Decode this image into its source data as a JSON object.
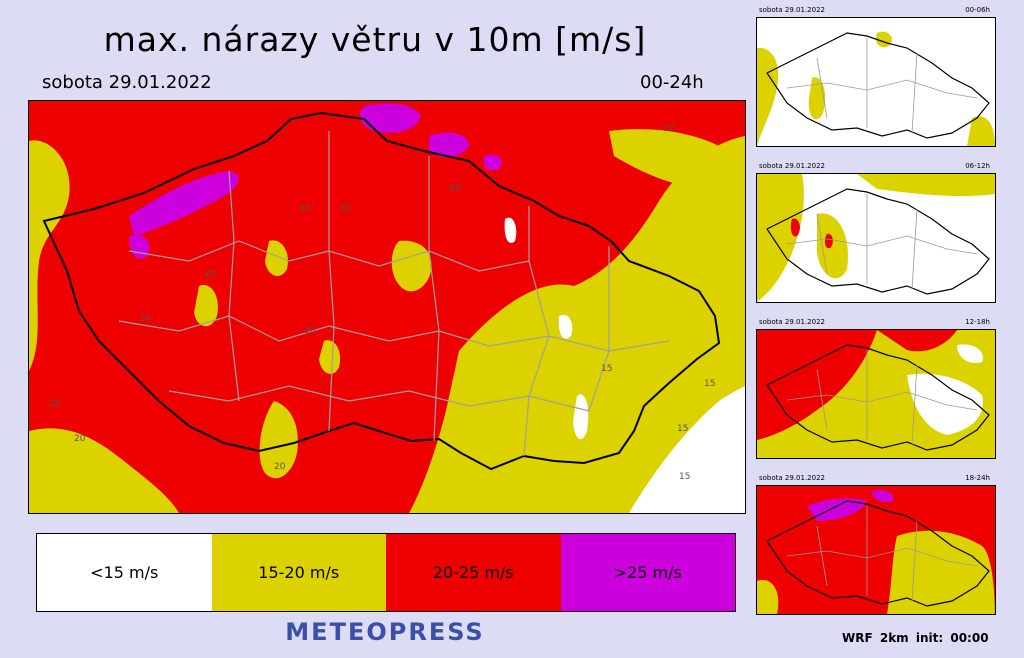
{
  "header": {
    "title": "max. nárazy větru v 10m [m/s]",
    "date": "sobota 29.01.2022",
    "range": "00-24h"
  },
  "map": {
    "labels": [
      "20",
      "20",
      "20",
      "20",
      "20",
      "20",
      "20",
      "20",
      "15",
      "15",
      "15",
      "15",
      "20",
      "20"
    ]
  },
  "legend": [
    {
      "label": "<15 m/s",
      "color": "#ffffff"
    },
    {
      "label": "15-20 m/s",
      "color": "#dcd200"
    },
    {
      "label": "20-25 m/s",
      "color": "#ee0000"
    },
    {
      "label": ">25 m/s",
      "color": "#cc00dd"
    }
  ],
  "brand": "METEOPRESS",
  "thumbnails": [
    {
      "date": "sobota 29.01.2022",
      "range": "00-06h"
    },
    {
      "date": "sobota 29.01.2022",
      "range": "06-12h"
    },
    {
      "date": "sobota 29.01.2022",
      "range": "12-18h"
    },
    {
      "date": "sobota 29.01.2022",
      "range": "18-24h"
    }
  ],
  "model_info": "WRF 2km init: 00:00"
}
